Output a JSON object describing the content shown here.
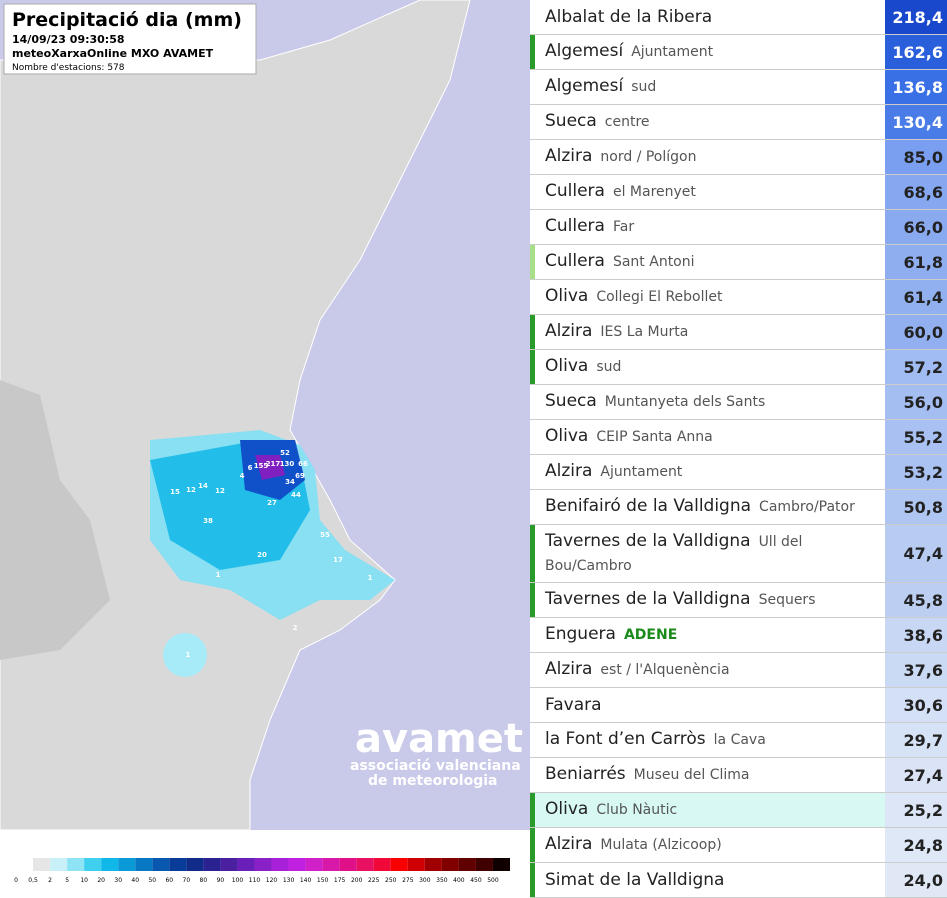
{
  "map": {
    "title": "Precipitació dia (mm)",
    "timestamp": "14/09/23 09:30:58",
    "source": "meteoXarxaOnline MXO AVAMET",
    "stations": "Nombre d'estacions: 578",
    "labels": [
      "52",
      "130",
      "217",
      "155",
      "66",
      "69",
      "34",
      "44",
      "38",
      "15",
      "12",
      "14",
      "12",
      "2",
      "1",
      "4",
      "6",
      "20",
      "27",
      "55",
      "17",
      "1",
      "1"
    ],
    "legend": [
      "0",
      "0,5",
      "2",
      "5",
      "10",
      "20",
      "30",
      "40",
      "50",
      "60",
      "70",
      "80",
      "90",
      "100",
      "110",
      "120",
      "130",
      "140",
      "150",
      "175",
      "200",
      "225",
      "250",
      "275",
      "300",
      "350",
      "400",
      "450",
      "500"
    ],
    "logo": {
      "name": "avamet",
      "line1": "associació valenciana",
      "line2": "de meteorologia"
    }
  },
  "table": {
    "rows": [
      {
        "place": "Albalat de la Ribera",
        "value": "218,4"
      },
      {
        "place": "Algemesí",
        "sub": "Ajuntament",
        "value": "162,6"
      },
      {
        "place": "Algemesí",
        "sub": "sud",
        "value": "136,8"
      },
      {
        "place": "Sueca",
        "sub": "centre",
        "value": "130,4"
      },
      {
        "place": "Alzira",
        "sub": "nord / Polígon",
        "value": "85,0"
      },
      {
        "place": "Cullera",
        "sub": "el Marenyet",
        "value": "68,6"
      },
      {
        "place": "Cullera",
        "sub": "Far",
        "value": "66,0"
      },
      {
        "place": "Cullera",
        "sub": "Sant Antoni",
        "value": "61,8"
      },
      {
        "place": "Oliva",
        "sub": "Collegi El Rebollet",
        "value": "61,4"
      },
      {
        "place": "Alzira",
        "sub": "IES La Murta",
        "value": "60,0"
      },
      {
        "place": "Oliva",
        "sub": "sud",
        "value": "57,2"
      },
      {
        "place": "Sueca",
        "sub": "Muntanyeta dels Sants",
        "value": "56,0"
      },
      {
        "place": "Oliva",
        "sub": "CEIP Santa Anna",
        "value": "55,2"
      },
      {
        "place": "Alzira",
        "sub": "Ajuntament",
        "value": "53,2"
      },
      {
        "place": "Benifairó de la Valldigna",
        "sub": "Cambro/Pator",
        "value": "50,8"
      },
      {
        "place": "Tavernes de la Valldigna",
        "sub": "Ull del Bou/Cambro",
        "value": "47,4"
      },
      {
        "place": "Tavernes de la Valldigna",
        "sub": "Sequers",
        "value": "45,8"
      },
      {
        "place": "Enguera",
        "sub": "ADENE",
        "value": "38,6"
      },
      {
        "place": "Alzira",
        "sub": "est / l'Alquenència",
        "value": "37,6"
      },
      {
        "place": "Favara",
        "value": "30,6"
      },
      {
        "place": "la Font d’en Carròs",
        "sub": "la Cava",
        "value": "29,7"
      },
      {
        "place": "Beniarrés",
        "sub": "Museu del Clima",
        "value": "27,4"
      },
      {
        "place": "Oliva",
        "sub": "Club Nàutic",
        "value": "25,2"
      },
      {
        "place": "Alzira",
        "sub": "Mulata (Alzicoop)",
        "value": "24,8"
      },
      {
        "place": "Simat de la Valldigna",
        "value": "24,0"
      }
    ]
  }
}
